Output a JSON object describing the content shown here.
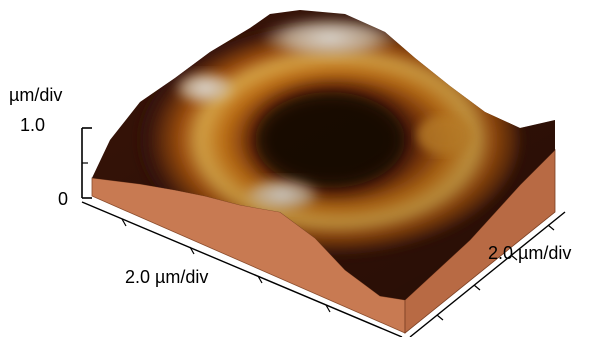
{
  "chart_data": {
    "type": "surface3d",
    "description_visible": false,
    "z_axis": {
      "unit_label": "µm/div",
      "ticks": [
        "0",
        "1.0"
      ],
      "range": [
        0,
        1.0
      ]
    },
    "x_axis": {
      "label": "2.0 µm/div"
    },
    "y_axis": {
      "label": "2.0 µm/div"
    },
    "colormap": [
      "#2a0d05",
      "#4a1a08",
      "#7a2c0a",
      "#b8520f",
      "#e08a1c",
      "#f2c060",
      "#f4efe4"
    ],
    "base_color": "#c87a52",
    "grid": false,
    "legend": "none"
  }
}
